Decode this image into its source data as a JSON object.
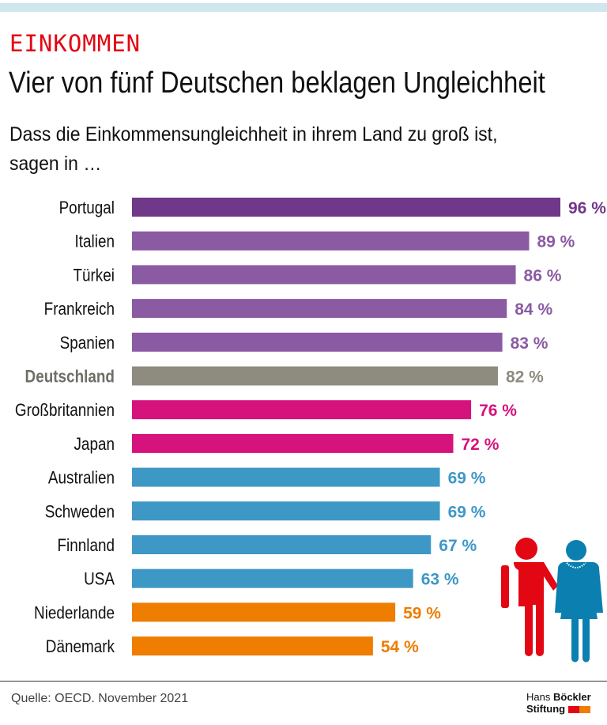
{
  "header": {
    "kicker": "EINKOMMEN",
    "title": "Vier von fünf Deutschen beklagen Ungleichheit",
    "subtitle_line1": "Dass die Einkommensungleichheit in ihrem Land zu groß ist,",
    "subtitle_line2": "sagen in …"
  },
  "chart_data": {
    "type": "bar",
    "orientation": "horizontal",
    "unit": "%",
    "xlim": [
      0,
      100
    ],
    "grid": false,
    "categories": [
      "Portugal",
      "Italien",
      "Türkei",
      "Frankreich",
      "Spanien",
      "Deutschland",
      "Großbritannien",
      "Japan",
      "Australien",
      "Schweden",
      "Finnland",
      "USA",
      "Niederlande",
      "Dänemark"
    ],
    "values": [
      96,
      89,
      86,
      84,
      83,
      82,
      76,
      72,
      69,
      69,
      67,
      63,
      59,
      54
    ],
    "colors": [
      "#6f3889",
      "#8a5ba3",
      "#8a5ba3",
      "#8a5ba3",
      "#8a5ba3",
      "#8e8b7f",
      "#d6127d",
      "#d6127d",
      "#3e98c6",
      "#3e98c6",
      "#3e98c6",
      "#3e98c6",
      "#ef7d00",
      "#ef7d00"
    ],
    "highlight": "Deutschland"
  },
  "footer": {
    "source": "Quelle: OECD. November 2021",
    "logo_line1a": "Hans",
    "logo_line1b": "Böckler",
    "logo_line2": "Stiftung"
  },
  "illustration": {
    "icons": [
      "man-icon",
      "woman-icon"
    ],
    "colors": {
      "man": "#e30613",
      "woman": "#0a7fb0"
    }
  }
}
